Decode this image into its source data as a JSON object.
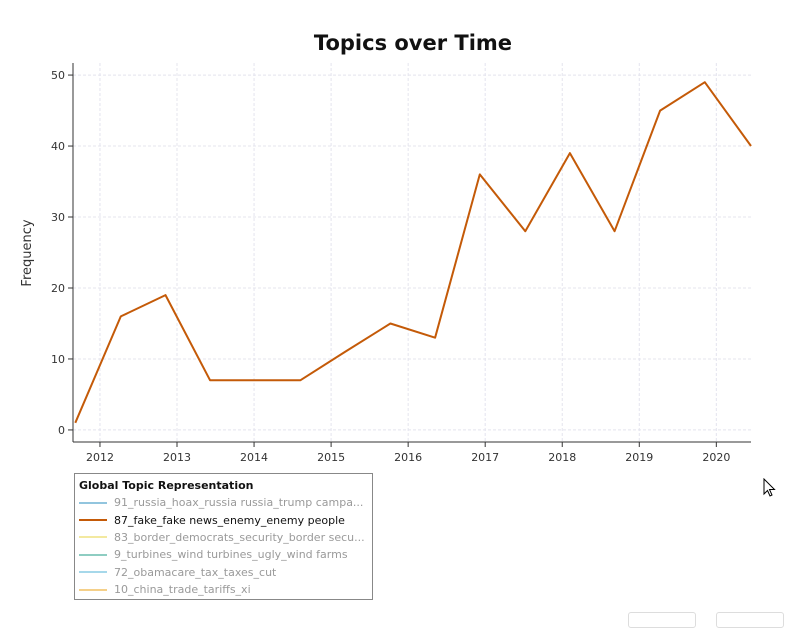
{
  "chart_data": {
    "type": "line",
    "title": "Topics over Time",
    "xlabel": "",
    "ylabel": "Frequency",
    "xlim": [
      2011.65,
      2020.45
    ],
    "ylim": [
      -1.7,
      51.7
    ],
    "x_ticks": [
      "2012",
      "2013",
      "2014",
      "2015",
      "2016",
      "2017",
      "2018",
      "2019",
      "2020"
    ],
    "x_tick_values": [
      2012,
      2013,
      2014,
      2015,
      2016,
      2017,
      2018,
      2019,
      2020
    ],
    "y_ticks": [
      0,
      10,
      20,
      30,
      40,
      50
    ],
    "grid": true,
    "legend_title": "Global Topic Representation",
    "legend_placement": "bottom-left",
    "series": [
      {
        "name": "91_russia_hoax_russia russia_trump campa...",
        "color": "#92c5de",
        "visible": false,
        "x": [],
        "values": []
      },
      {
        "name": "87_fake_fake news_enemy_enemy people",
        "color": "#c45a08",
        "visible": true,
        "x": [
          2011.68,
          2012.27,
          2012.85,
          2013.43,
          2014.02,
          2014.6,
          2015.18,
          2015.77,
          2016.35,
          2016.93,
          2017.52,
          2018.1,
          2018.68,
          2019.27,
          2019.85,
          2020.45
        ],
        "values": [
          1,
          16,
          19,
          7,
          7,
          7,
          11,
          15,
          13,
          36,
          28,
          39,
          28,
          45,
          49,
          40
        ]
      },
      {
        "name": "83_border_democrats_security_border secu...",
        "color": "#f3e9a0",
        "visible": false,
        "x": [],
        "values": []
      },
      {
        "name": "9_turbines_wind turbines_ugly_wind farms",
        "color": "#8ecdc2",
        "visible": false,
        "x": [],
        "values": []
      },
      {
        "name": "72_obamacare_tax_taxes_cut",
        "color": "#a6d8ea",
        "visible": false,
        "x": [],
        "values": []
      },
      {
        "name": "10_china_trade_tariffs_xi",
        "color": "#f5d089",
        "visible": false,
        "x": [],
        "values": []
      }
    ]
  }
}
